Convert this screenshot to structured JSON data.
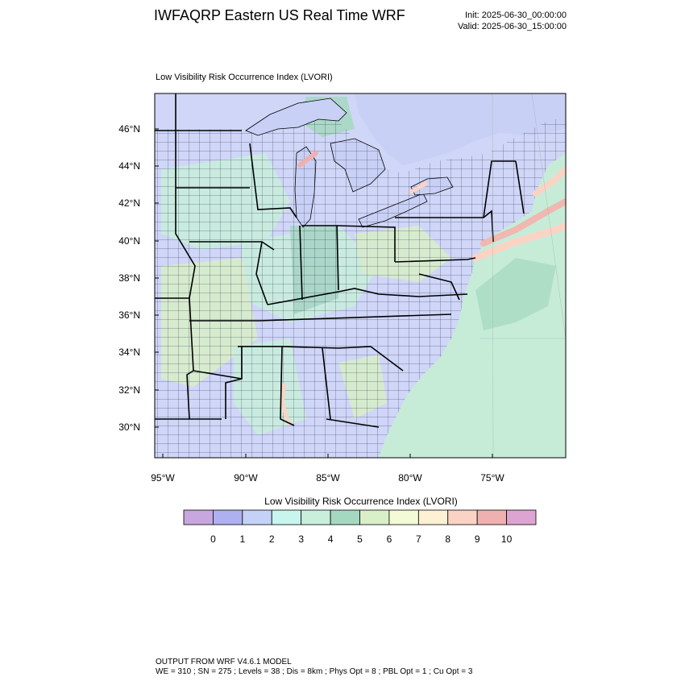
{
  "header": {
    "title": "IWFAQRP Eastern US Real Time WRF",
    "init": "Init: 2025-06-30_00:00:00",
    "valid": "Valid: 2025-06-30_15:00:00"
  },
  "map": {
    "subtitle": "Low Visibility Risk Occurrence Index   (LVORI)",
    "lat_labels": [
      "46°N",
      "44°N",
      "42°N",
      "40°N",
      "38°N",
      "36°N",
      "34°N",
      "32°N",
      "30°N"
    ],
    "lon_labels": [
      "95°W",
      "90°W",
      "85°W",
      "80°W",
      "75°W"
    ],
    "colors": {
      "land": "#cfd6f7",
      "water": "#c8d0f5",
      "ocean": "#c6ecd8",
      "border": "#000000"
    }
  },
  "colorbar": {
    "title": "Low Visibility Risk Occurrence Index  (LVORI)",
    "colors": [
      "#c8a6df",
      "#aeb0ef",
      "#c5d2f8",
      "#c8f5ee",
      "#c8efdb",
      "#a5d8c0",
      "#d8efc8",
      "#f3fbd6",
      "#fdf0d5",
      "#fbd3c4",
      "#efb0b0",
      "#dda4d2"
    ],
    "labels": [
      "0",
      "1",
      "2",
      "3",
      "4",
      "5",
      "6",
      "7",
      "8",
      "9",
      "10"
    ]
  },
  "footer": {
    "line1": "OUTPUT FROM WRF V4.6.1 MODEL",
    "line2": "WE = 310 ; SN = 275 ; Levels = 38 ; Dis = 8km ; Phys Opt = 8 ; PBL Opt = 1 ; Cu Opt = 3"
  }
}
